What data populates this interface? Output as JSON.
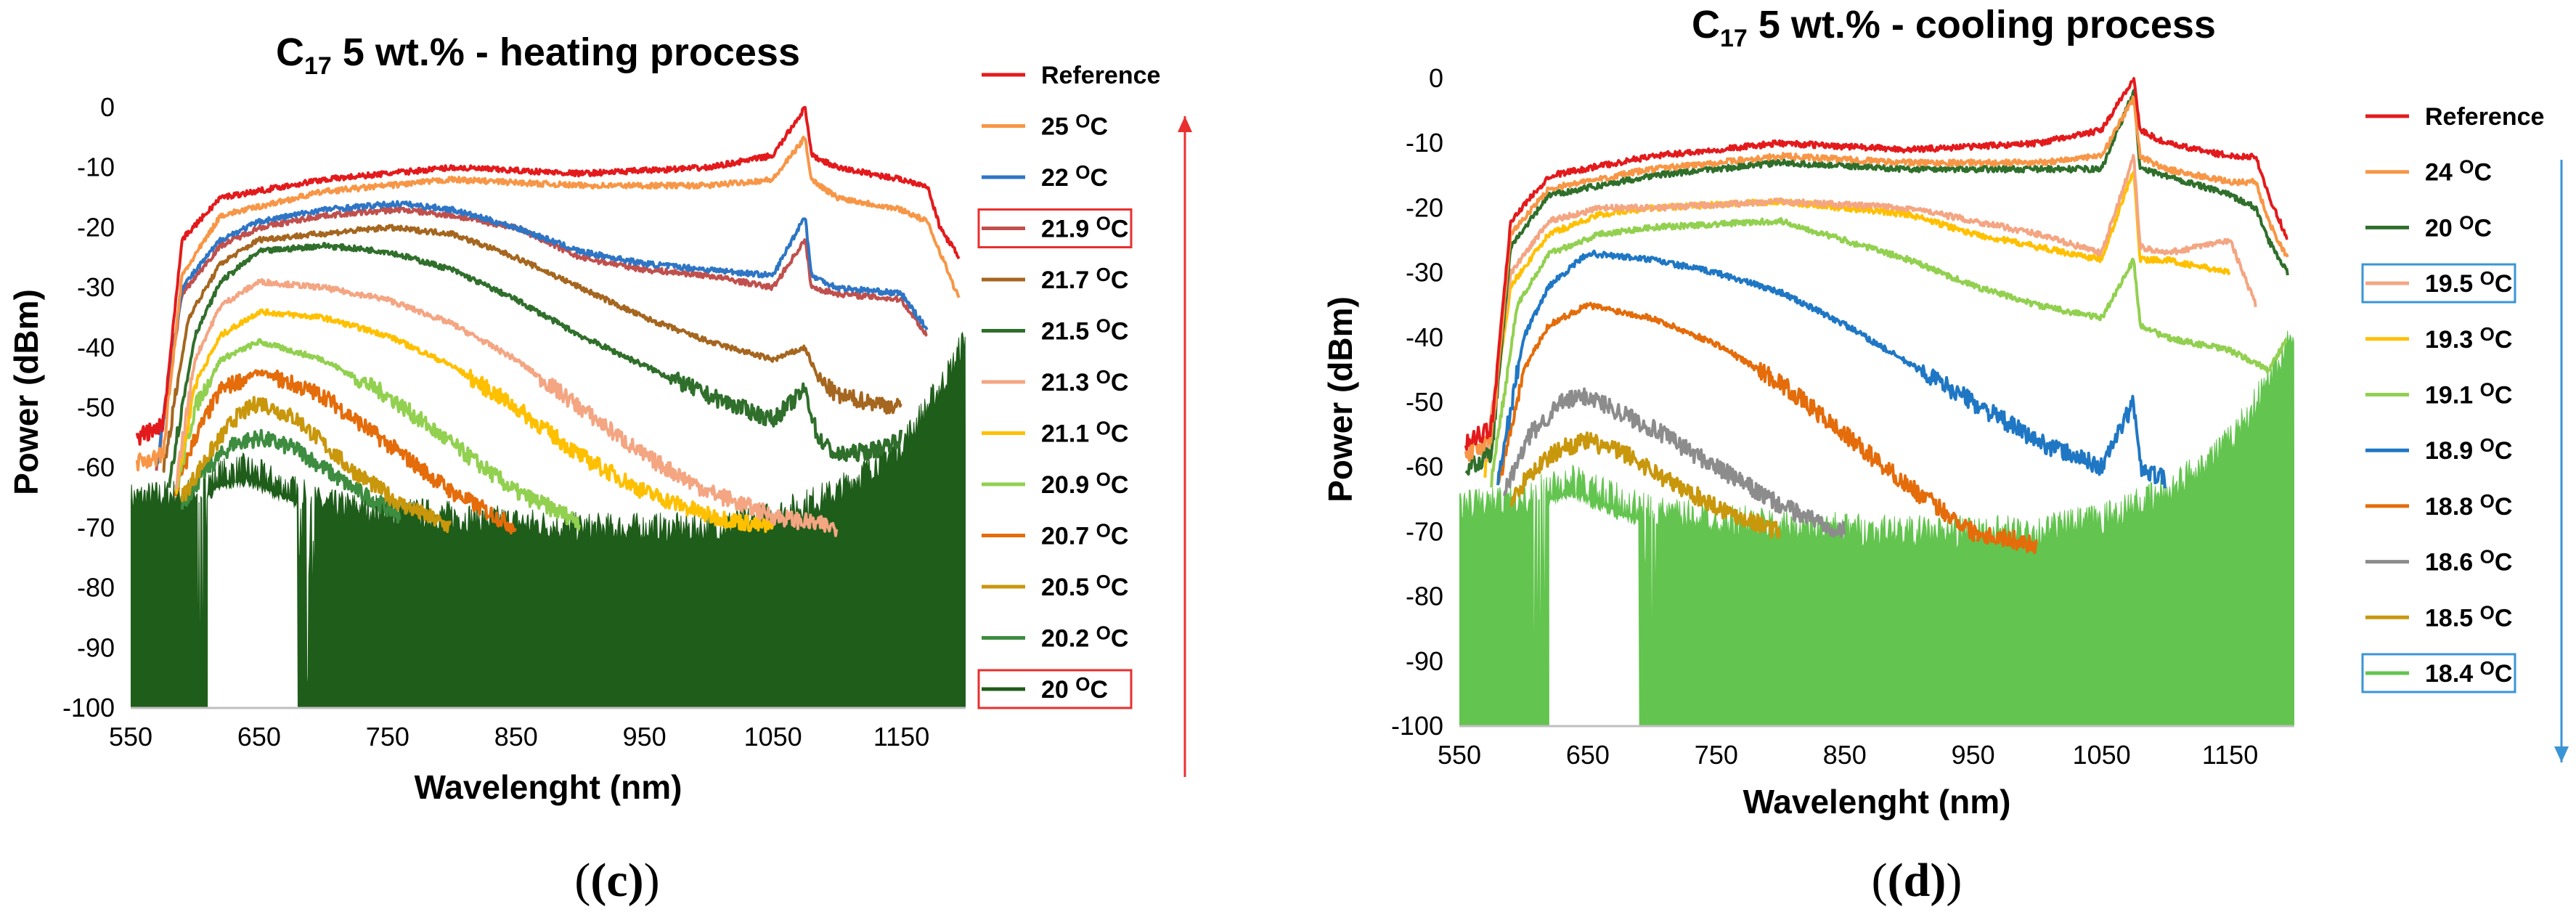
{
  "chart_data": [
    {
      "type": "line",
      "title_prefix": "C",
      "title_sub": "17",
      "title_rest": " 5 wt.% - heating process",
      "caption": "(c)",
      "xlabel": "Wavelenght (nm)",
      "ylabel": "Power (dBm)",
      "xlim": [
        550,
        1200
      ],
      "ylim": [
        -100,
        0
      ],
      "xticks": [
        550,
        650,
        750,
        850,
        950,
        1050,
        1150
      ],
      "yticks": [
        0,
        -10,
        -20,
        -30,
        -40,
        -50,
        -60,
        -70,
        -80,
        -90,
        -100
      ],
      "arrow": "up",
      "arrow_color": "#e8302f",
      "series": [
        {
          "name": "Reference",
          "unit": "",
          "color": "#e31a1c",
          "boxed": false,
          "x": [
            555,
            575,
            590,
            620,
            700,
            800,
            900,
            1000,
            1050,
            1075,
            1080,
            1100,
            1150,
            1170,
            1180,
            1195
          ],
          "y": [
            -55,
            -53,
            -22,
            -15,
            -12,
            -10,
            -11,
            -10,
            -8,
            0,
            -8,
            -10,
            -12,
            -13,
            -20,
            -25
          ]
        },
        {
          "name": "25 ",
          "unit": "°C",
          "color": "#f79646",
          "boxed": false,
          "x": [
            555,
            575,
            590,
            620,
            700,
            800,
            900,
            1000,
            1050,
            1075,
            1080,
            1100,
            1150,
            1170,
            1180,
            1195
          ],
          "y": [
            -59,
            -58,
            -28,
            -18,
            -14,
            -12,
            -13,
            -13,
            -12,
            -5,
            -12,
            -15,
            -17,
            -19,
            -24,
            -32
          ]
        },
        {
          "name": "22 ",
          "unit": "°C",
          "color": "#2e75c5",
          "boxed": false,
          "x": [
            570,
            590,
            620,
            650,
            700,
            760,
            800,
            850,
            900,
            950,
            1000,
            1050,
            1075,
            1080,
            1100,
            1150,
            1170
          ],
          "y": [
            -60,
            -30,
            -22,
            -19,
            -17,
            -16,
            -17,
            -20,
            -24,
            -26,
            -27,
            -28,
            -18,
            -28,
            -30,
            -31,
            -37
          ]
        },
        {
          "name": "21.9 ",
          "unit": "°C",
          "color": "#c0504d",
          "boxed": true,
          "box_color": "#e8302f",
          "x": [
            570,
            590,
            620,
            650,
            700,
            760,
            800,
            850,
            900,
            950,
            1000,
            1050,
            1075,
            1080,
            1100,
            1150,
            1170
          ],
          "y": [
            -60,
            -31,
            -23,
            -20,
            -18,
            -17,
            -18,
            -20,
            -25,
            -27,
            -28,
            -30,
            -22,
            -30,
            -31,
            -32,
            -38
          ]
        },
        {
          "name": "21.7 ",
          "unit": "°C",
          "color": "#a5661f",
          "boxed": false,
          "x": [
            575,
            595,
            620,
            650,
            700,
            750,
            800,
            850,
            900,
            950,
            1000,
            1050,
            1075,
            1085,
            1100,
            1150
          ],
          "y": [
            -61,
            -35,
            -26,
            -22,
            -21,
            -20,
            -21,
            -25,
            -30,
            -35,
            -39,
            -42,
            -40,
            -45,
            -48,
            -50
          ]
        },
        {
          "name": "21.5 ",
          "unit": "°C",
          "color": "#2f6f2b",
          "boxed": false,
          "x": [
            580,
            600,
            620,
            650,
            700,
            750,
            800,
            850,
            900,
            950,
            1000,
            1050,
            1075,
            1085,
            1100,
            1130,
            1150
          ],
          "y": [
            -62,
            -38,
            -29,
            -24,
            -23,
            -24,
            -27,
            -32,
            -38,
            -43,
            -48,
            -52,
            -47,
            -55,
            -58,
            -57,
            -55
          ]
        },
        {
          "name": "21.3 ",
          "unit": "°C",
          "color": "#f4a582",
          "boxed": false,
          "x": [
            585,
            600,
            620,
            650,
            700,
            750,
            800,
            850,
            900,
            950,
            1000,
            1050,
            1100
          ],
          "y": [
            -63,
            -42,
            -33,
            -29,
            -30,
            -32,
            -36,
            -42,
            -50,
            -58,
            -64,
            -68,
            -70
          ]
        },
        {
          "name": "21.1 ",
          "unit": "°C",
          "color": "#ffc000",
          "boxed": false,
          "x": [
            585,
            600,
            620,
            650,
            700,
            750,
            800,
            850,
            900,
            950,
            1000,
            1050
          ],
          "y": [
            -64,
            -46,
            -38,
            -34,
            -35,
            -38,
            -43,
            -50,
            -58,
            -64,
            -68,
            -70
          ]
        },
        {
          "name": "20.9 ",
          "unit": "°C",
          "color": "#92d050",
          "boxed": false,
          "x": [
            585,
            600,
            620,
            650,
            700,
            750,
            800,
            850,
            900
          ],
          "y": [
            -64,
            -50,
            -42,
            -39,
            -42,
            -48,
            -56,
            -64,
            -69
          ]
        },
        {
          "name": "20.7 ",
          "unit": "°C",
          "color": "#e46c0a",
          "boxed": false,
          "x": [
            585,
            600,
            620,
            650,
            700,
            750,
            800,
            850
          ],
          "y": [
            -64,
            -55,
            -47,
            -44,
            -48,
            -56,
            -64,
            -70
          ]
        },
        {
          "name": "20.5 ",
          "unit": "°C",
          "color": "#c9970c",
          "boxed": false,
          "x": [
            590,
            610,
            630,
            650,
            680,
            720,
            760,
            800
          ],
          "y": [
            -65,
            -58,
            -52,
            -49,
            -52,
            -60,
            -66,
            -70
          ]
        },
        {
          "name": "20.2 ",
          "unit": "°C",
          "color": "#3d8c40",
          "boxed": false,
          "x": [
            590,
            610,
            630,
            650,
            680,
            720,
            760
          ],
          "y": [
            -66,
            -60,
            -56,
            -55,
            -57,
            -63,
            -68
          ]
        },
        {
          "name": "20 ",
          "unit": "°C",
          "color": "#1f5d1a",
          "boxed": true,
          "box_color": "#e8302f",
          "fill": true,
          "gaps": [
            [
              610,
              680
            ]
          ],
          "x": [
            550,
            600,
            620,
            640,
            660,
            700,
            800,
            900,
            1000,
            1050,
            1100,
            1150,
            1170,
            1190,
            1200
          ],
          "y": [
            -65,
            -64,
            -61,
            -60,
            -62,
            -66,
            -68,
            -70,
            -70,
            -68,
            -64,
            -56,
            -50,
            -43,
            -38
          ]
        }
      ]
    },
    {
      "type": "line",
      "title_prefix": "C",
      "title_sub": "17",
      "title_rest": " 5 wt.% - cooling process",
      "caption": "(d)",
      "xlabel": "Wavelenght (nm)",
      "ylabel": "Power (dBm)",
      "xlim": [
        550,
        1200
      ],
      "ylim": [
        -100,
        0
      ],
      "xticks": [
        550,
        650,
        750,
        850,
        950,
        1050,
        1150
      ],
      "yticks": [
        0,
        -10,
        -20,
        -30,
        -40,
        -50,
        -60,
        -70,
        -80,
        -90,
        -100
      ],
      "arrow": "down",
      "arrow_color": "#3a95d6",
      "series": [
        {
          "name": "Reference",
          "unit": "",
          "color": "#e31a1c",
          "boxed": false,
          "x": [
            555,
            575,
            590,
            620,
            700,
            800,
            900,
            1000,
            1050,
            1075,
            1080,
            1100,
            1150,
            1170,
            1180,
            1195
          ],
          "y": [
            -56,
            -54,
            -22,
            -15,
            -12,
            -10,
            -11,
            -10,
            -8,
            0,
            -8,
            -10,
            -12,
            -12,
            -18,
            -25
          ]
        },
        {
          "name": "24 ",
          "unit": "°C",
          "color": "#f79646",
          "boxed": false,
          "x": [
            555,
            575,
            590,
            620,
            700,
            800,
            900,
            1000,
            1050,
            1075,
            1080,
            1100,
            1150,
            1170,
            1180,
            1195
          ],
          "y": [
            -58,
            -56,
            -24,
            -17,
            -14,
            -12,
            -13,
            -13,
            -12,
            -3,
            -12,
            -14,
            -16,
            -16,
            -22,
            -28
          ]
        },
        {
          "name": "20 ",
          "unit": "°C",
          "color": "#2f6f2b",
          "boxed": false,
          "x": [
            555,
            575,
            590,
            620,
            700,
            800,
            900,
            1000,
            1050,
            1075,
            1080,
            1100,
            1150,
            1170,
            1180,
            1195
          ],
          "y": [
            -60,
            -58,
            -26,
            -18,
            -15,
            -13,
            -14,
            -14,
            -14,
            -2,
            -14,
            -15,
            -18,
            -20,
            -25,
            -30
          ]
        },
        {
          "name": "19.5 ",
          "unit": "°C",
          "color": "#f4a582",
          "boxed": true,
          "box_color": "#3a95d6",
          "x": [
            570,
            590,
            620,
            660,
            700,
            800,
            900,
            950,
            1000,
            1050,
            1075,
            1080,
            1100,
            1150,
            1170
          ],
          "y": [
            -60,
            -30,
            -22,
            -20,
            -20,
            -19,
            -20,
            -22,
            -24,
            -27,
            -12,
            -26,
            -27,
            -25,
            -35
          ]
        },
        {
          "name": "19.3 ",
          "unit": "°C",
          "color": "#ffc000",
          "boxed": false,
          "x": [
            570,
            590,
            620,
            660,
            700,
            800,
            900,
            950,
            1000,
            1050,
            1075,
            1080,
            1100,
            1150
          ],
          "y": [
            -61,
            -32,
            -24,
            -21,
            -20,
            -19,
            -21,
            -24,
            -26,
            -28,
            -14,
            -28,
            -28,
            -30
          ]
        },
        {
          "name": "19.1 ",
          "unit": "°C",
          "color": "#92d050",
          "boxed": false,
          "x": [
            575,
            595,
            620,
            660,
            700,
            800,
            900,
            950,
            1000,
            1050,
            1075,
            1080,
            1100,
            1150,
            1180,
            1195
          ],
          "y": [
            -62,
            -35,
            -27,
            -24,
            -23,
            -22,
            -28,
            -32,
            -35,
            -37,
            -28,
            -38,
            -40,
            -42,
            -45,
            -40
          ]
        },
        {
          "name": "18.9 ",
          "unit": "°C",
          "color": "#1f77c4",
          "boxed": false,
          "x": [
            580,
            600,
            620,
            650,
            700,
            750,
            800,
            850,
            900,
            950,
            1000,
            1050,
            1075,
            1080,
            1100
          ],
          "y": [
            -62,
            -40,
            -32,
            -27,
            -28,
            -30,
            -33,
            -38,
            -44,
            -50,
            -56,
            -60,
            -50,
            -60,
            -62
          ]
        },
        {
          "name": "18.8 ",
          "unit": "°C",
          "color": "#e46c0a",
          "boxed": false,
          "x": [
            580,
            600,
            620,
            650,
            700,
            750,
            800,
            850,
            900,
            950,
            1000
          ],
          "y": [
            -63,
            -45,
            -38,
            -35,
            -37,
            -41,
            -47,
            -55,
            -63,
            -70,
            -72
          ]
        },
        {
          "name": "18.6 ",
          "unit": "°C",
          "color": "#8c8c8c",
          "boxed": false,
          "x": [
            585,
            605,
            630,
            650,
            700,
            750,
            800,
            850
          ],
          "y": [
            -64,
            -55,
            -50,
            -49,
            -54,
            -60,
            -66,
            -70
          ]
        },
        {
          "name": "18.5 ",
          "unit": "°C",
          "color": "#c9970c",
          "boxed": false,
          "x": [
            590,
            610,
            630,
            650,
            680,
            720,
            760,
            800
          ],
          "y": [
            -65,
            -60,
            -57,
            -56,
            -58,
            -63,
            -67,
            -70
          ]
        },
        {
          "name": "18.4 ",
          "unit": "°C",
          "color": "#63c44f",
          "boxed": true,
          "box_color": "#3a95d6",
          "fill": true,
          "gaps": [
            [
              620,
              690
            ]
          ],
          "x": [
            550,
            600,
            620,
            640,
            660,
            700,
            800,
            900,
            1000,
            1050,
            1100,
            1150,
            1170,
            1190,
            1200
          ],
          "y": [
            -66,
            -65,
            -63,
            -62,
            -64,
            -67,
            -69,
            -70,
            -70,
            -68,
            -64,
            -56,
            -50,
            -43,
            -38
          ]
        }
      ]
    }
  ]
}
